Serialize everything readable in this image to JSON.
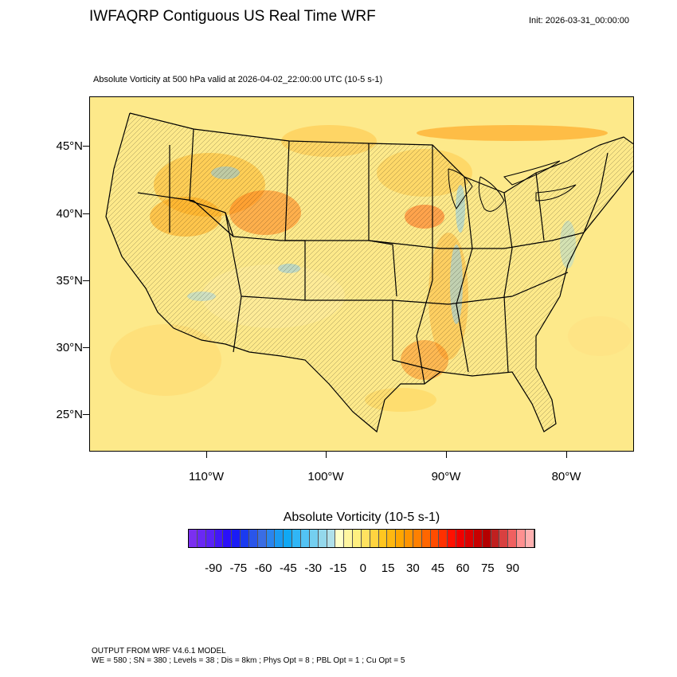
{
  "header": {
    "title": "IWFAQRP Contiguous US Real Time WRF",
    "init": "Init: 2026-03-31_00:00:00",
    "subtitle": "Absolute Vorticity at 500 hPa valid at 2026-04-02_22:00:00 UTC   (10-5 s-1)"
  },
  "map": {
    "lat_labels": [
      "45°N",
      "40°N",
      "35°N",
      "30°N",
      "25°N"
    ],
    "lon_labels": [
      "110°W",
      "100°W",
      "90°W",
      "80°W"
    ],
    "background_color": "#fde98a",
    "boundary_color": "#000000"
  },
  "colorbar": {
    "title": "Absolute Vorticity  (10-5 s-1)",
    "tick_labels": [
      "-90",
      "-75",
      "-60",
      "-45",
      "-30",
      "-15",
      "0",
      "15",
      "30",
      "45",
      "60",
      "75",
      "90"
    ],
    "colors": [
      "#7b2ff0",
      "#6a28f4",
      "#5a22f6",
      "#4217f8",
      "#2a10fa",
      "#1a1cf6",
      "#1a3af0",
      "#2a55ea",
      "#3a6de4",
      "#2a85ee",
      "#1a9bf2",
      "#10a8f4",
      "#30b6f6",
      "#52c3f4",
      "#74cff0",
      "#94d8ec",
      "#b0e0ea",
      "#ffffc8",
      "#fff6a0",
      "#ffef80",
      "#ffe260",
      "#ffd440",
      "#ffc620",
      "#ffb810",
      "#ffa600",
      "#ff9400",
      "#ff8000",
      "#ff6600",
      "#ff4c00",
      "#ff3000",
      "#ff1000",
      "#f00000",
      "#dc0000",
      "#c80000",
      "#b40000",
      "#c02020",
      "#d84040",
      "#f06060",
      "#ff9090",
      "#ffb0b0"
    ]
  },
  "footer": {
    "line1": "OUTPUT FROM WRF V4.6.1 MODEL",
    "line2": "WE = 580 ; SN = 380 ; Levels = 38 ; Dis = 8km ; Phys Opt = 8 ; PBL Opt = 1 ; Cu Opt = 5"
  }
}
